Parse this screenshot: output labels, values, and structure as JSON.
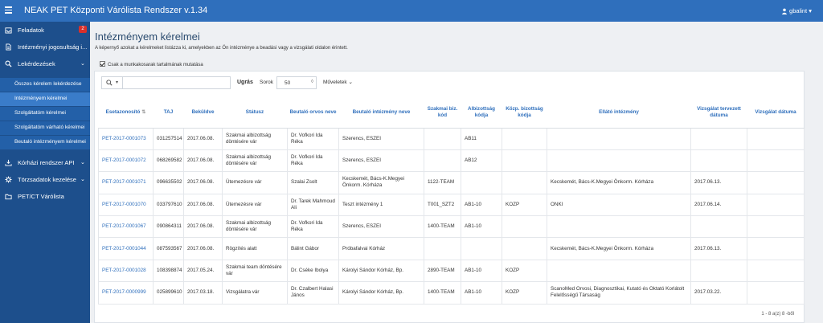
{
  "app": {
    "title": "NEAK PET Központi Várólista Rendszer v.1.34",
    "user": "gbalint"
  },
  "sidebar": {
    "items": [
      {
        "label": "Feladatok",
        "badge": "2"
      },
      {
        "label": "Intézményi jogosultság i..."
      },
      {
        "label": "Lekérdezések"
      }
    ],
    "subitems": [
      "Összes kérelem lekérdezése",
      "Intézményem kérelmei",
      "Szolgáltatóm kérelmei",
      "Szolgáltatóm várható kérelmei",
      "Beutaló intézményem kérelmei"
    ],
    "bottom_items": [
      {
        "label": "Kórházi rendszer API"
      },
      {
        "label": "Törzsadatok kezelése"
      },
      {
        "label": "PET/CT Várólista"
      }
    ]
  },
  "page": {
    "title": "Intézményem kérelmei",
    "subtitle": "A képernyő azokat a kérelmeket listázza ki, amelyekben az Ön intézménye a beadási vagy a vizsgálati oldalon érintett.",
    "checkbox_label": "Csak a munkakosarak tartalmának mutatása"
  },
  "toolbar": {
    "search_label": "Ugrás",
    "rows_label": "Sorok",
    "rows_value": "50",
    "actions_label": "Műveletek"
  },
  "table": {
    "columns": [
      "Esetazonosító",
      "TAJ",
      "Beküldve",
      "Státusz",
      "Beutaló orvos neve",
      "Beutaló intézmény neve",
      "Szakmai biz. kód",
      "Albizottság kódja",
      "Közp. bizottság kódja",
      "Ellátó intézmény",
      "Vizsgálat tervezett dátuma",
      "Vizsgálat dátuma"
    ],
    "rows": [
      [
        "PET-2017-0001073",
        "031257514",
        "2017.06.08.",
        "Szakmai albizottság döntésére vár",
        "Dr. Vofkori Ida Réka",
        "Szerencs, ESZEI",
        "",
        "AB11",
        "",
        "",
        "",
        ""
      ],
      [
        "PET-2017-0001072",
        "068269582",
        "2017.06.08.",
        "Szakmai albizottság döntésére vár",
        "Dr. Vofkori Ida Réka",
        "Szerencs, ESZEI",
        "",
        "AB12",
        "",
        "",
        "",
        ""
      ],
      [
        "PET-2017-0001071",
        "096635502",
        "2017.06.08.",
        "Ütemezésre vár",
        "Szalai Zsolt",
        "Kecskemét, Bács-K.Megyei Önkorm. Kórháza",
        "1122-TEAM",
        "",
        "",
        "Kecskemét, Bács-K.Megyei Önkorm. Kórháza",
        "2017.06.13.",
        ""
      ],
      [
        "PET-2017-0001070",
        "033797610",
        "2017.06.08.",
        "Ütemezésre vár",
        "Dr. Tarek Mahmoud Ali",
        "Teszt intézmény 1",
        "T001_SZT2",
        "AB1-10",
        "KOZP",
        "ONKI",
        "2017.06.14.",
        ""
      ],
      [
        "PET-2017-0001067",
        "090864311",
        "2017.06.08.",
        "Szakmai albizottság döntésére vár",
        "Dr. Vofkori Ida Réka",
        "Szerencs, ESZEI",
        "1400-TEAM",
        "AB1-10",
        "",
        "",
        "",
        ""
      ],
      [
        "PET-2017-0001044",
        "087593567",
        "2017.06.08.",
        "Rögzítés alatt",
        "Bálint Gábor",
        "Próbafalvai Kórház",
        "",
        "",
        "",
        "Kecskemét, Bács-K.Megyei Önkorm. Kórháza",
        "2017.06.13.",
        ""
      ],
      [
        "PET-2017-0001028",
        "108398874",
        "2017.05.24.",
        "Szakmai team döntésére vár",
        "Dr. Cséke Ibolya",
        "Károlyi Sándor Kórház, Bp.",
        "2890-TEAM",
        "AB1-10",
        "KOZP",
        "",
        "",
        ""
      ],
      [
        "PET-2017-0000999",
        "025899610",
        "2017.03.18.",
        "Vizsgálatra vár",
        "Dr. Czalbert Halasi János",
        "Károlyi Sándor Kórház, Bp.",
        "1400-TEAM",
        "AB1-10",
        "KOZP",
        "ScanoMed Orvosi, Diagnosztikai, Kutató és Oktató Korlátolt Felelősségű Társaság",
        "2017.03.22.",
        ""
      ]
    ],
    "footer": "1 - 8 a(z) 8 -ből"
  }
}
